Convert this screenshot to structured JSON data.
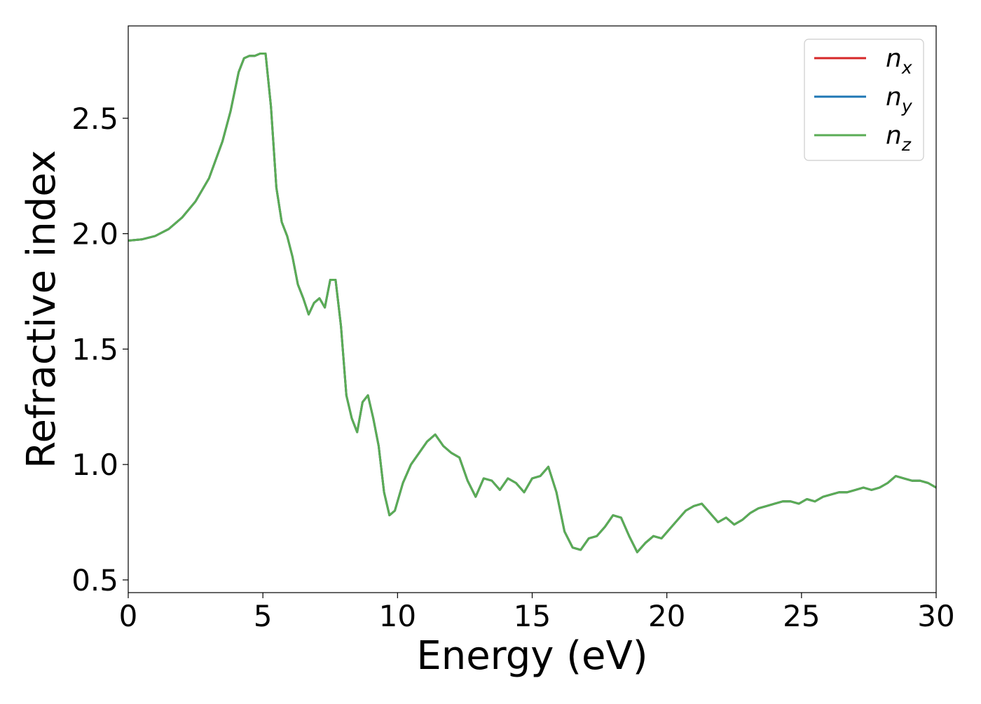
{
  "chart_data": {
    "type": "line",
    "xlabel": "Energy (eV)",
    "ylabel": "Refractive index",
    "xlim": [
      0,
      30
    ],
    "ylim": [
      0.445,
      2.9
    ],
    "xticks": [
      0,
      5,
      10,
      15,
      20,
      25,
      30
    ],
    "xtick_labels": [
      "0",
      "5",
      "10",
      "15",
      "20",
      "25",
      "30"
    ],
    "yticks": [
      0.5,
      1.0,
      1.5,
      2.0,
      2.5
    ],
    "ytick_labels": [
      "0.5",
      "1.0",
      "1.5",
      "2.0",
      "2.5"
    ],
    "grid": false,
    "legend_position": "top-right",
    "series": [
      {
        "name": "n_x",
        "label_main": "n",
        "label_sub": "x",
        "color": "#d62728",
        "x": [
          0,
          0.5,
          1,
          1.5,
          2,
          2.5,
          3,
          3.5,
          3.8,
          4.1,
          4.3,
          4.5,
          4.7,
          4.9,
          5.1,
          5.3,
          5.5,
          5.7,
          5.9,
          6.1,
          6.3,
          6.5,
          6.7,
          6.9,
          7.1,
          7.3,
          7.5,
          7.7,
          7.9,
          8.1,
          8.3,
          8.5,
          8.7,
          8.9,
          9.1,
          9.3,
          9.5,
          9.7,
          9.9,
          10.2,
          10.5,
          10.8,
          11.1,
          11.4,
          11.7,
          12.0,
          12.3,
          12.6,
          12.9,
          13.2,
          13.5,
          13.8,
          14.1,
          14.4,
          14.7,
          15.0,
          15.3,
          15.6,
          15.9,
          16.2,
          16.5,
          16.8,
          17.1,
          17.4,
          17.7,
          18.0,
          18.3,
          18.6,
          18.9,
          19.2,
          19.5,
          19.8,
          20.1,
          20.4,
          20.7,
          21.0,
          21.3,
          21.6,
          21.9,
          22.2,
          22.5,
          22.8,
          23.1,
          23.4,
          23.7,
          24.0,
          24.3,
          24.6,
          24.9,
          25.2,
          25.5,
          25.8,
          26.1,
          26.4,
          26.7,
          27.0,
          27.3,
          27.6,
          27.9,
          28.2,
          28.5,
          28.8,
          29.1,
          29.4,
          29.7,
          30.0
        ],
        "y": [
          1.97,
          1.975,
          1.99,
          2.02,
          2.07,
          2.14,
          2.24,
          2.4,
          2.53,
          2.7,
          2.76,
          2.77,
          2.77,
          2.78,
          2.78,
          2.55,
          2.2,
          2.05,
          1.99,
          1.9,
          1.78,
          1.72,
          1.65,
          1.7,
          1.72,
          1.68,
          1.8,
          1.8,
          1.6,
          1.3,
          1.2,
          1.14,
          1.27,
          1.3,
          1.2,
          1.08,
          0.88,
          0.78,
          0.8,
          0.92,
          1.0,
          1.05,
          1.1,
          1.13,
          1.08,
          1.05,
          1.03,
          0.93,
          0.86,
          0.94,
          0.93,
          0.89,
          0.94,
          0.92,
          0.88,
          0.94,
          0.95,
          0.99,
          0.88,
          0.71,
          0.64,
          0.63,
          0.68,
          0.69,
          0.73,
          0.78,
          0.77,
          0.69,
          0.62,
          0.66,
          0.69,
          0.68,
          0.72,
          0.76,
          0.8,
          0.82,
          0.83,
          0.79,
          0.75,
          0.77,
          0.74,
          0.76,
          0.79,
          0.81,
          0.82,
          0.83,
          0.84,
          0.84,
          0.83,
          0.85,
          0.84,
          0.86,
          0.87,
          0.88,
          0.88,
          0.89,
          0.9,
          0.89,
          0.9,
          0.92,
          0.95,
          0.94,
          0.93,
          0.93,
          0.92,
          0.9
        ]
      },
      {
        "name": "n_y",
        "label_main": "n",
        "label_sub": "y",
        "color": "#1f77b4",
        "x": [
          0,
          0.5,
          1,
          1.5,
          2,
          2.5,
          3,
          3.5,
          3.8,
          4.1,
          4.3,
          4.5,
          4.7,
          4.9,
          5.1,
          5.3,
          5.5,
          5.7,
          5.9,
          6.1,
          6.3,
          6.5,
          6.7,
          6.9,
          7.1,
          7.3,
          7.5,
          7.7,
          7.9,
          8.1,
          8.3,
          8.5,
          8.7,
          8.9,
          9.1,
          9.3,
          9.5,
          9.7,
          9.9,
          10.2,
          10.5,
          10.8,
          11.1,
          11.4,
          11.7,
          12.0,
          12.3,
          12.6,
          12.9,
          13.2,
          13.5,
          13.8,
          14.1,
          14.4,
          14.7,
          15.0,
          15.3,
          15.6,
          15.9,
          16.2,
          16.5,
          16.8,
          17.1,
          17.4,
          17.7,
          18.0,
          18.3,
          18.6,
          18.9,
          19.2,
          19.5,
          19.8,
          20.1,
          20.4,
          20.7,
          21.0,
          21.3,
          21.6,
          21.9,
          22.2,
          22.5,
          22.8,
          23.1,
          23.4,
          23.7,
          24.0,
          24.3,
          24.6,
          24.9,
          25.2,
          25.5,
          25.8,
          26.1,
          26.4,
          26.7,
          27.0,
          27.3,
          27.6,
          27.9,
          28.2,
          28.5,
          28.8,
          29.1,
          29.4,
          29.7,
          30.0
        ],
        "y": [
          1.97,
          1.975,
          1.99,
          2.02,
          2.07,
          2.14,
          2.24,
          2.4,
          2.53,
          2.7,
          2.76,
          2.77,
          2.77,
          2.78,
          2.78,
          2.55,
          2.2,
          2.05,
          1.99,
          1.9,
          1.78,
          1.72,
          1.65,
          1.7,
          1.72,
          1.68,
          1.8,
          1.8,
          1.6,
          1.3,
          1.2,
          1.14,
          1.27,
          1.3,
          1.2,
          1.08,
          0.88,
          0.78,
          0.8,
          0.92,
          1.0,
          1.05,
          1.1,
          1.13,
          1.08,
          1.05,
          1.03,
          0.93,
          0.86,
          0.94,
          0.93,
          0.89,
          0.94,
          0.92,
          0.88,
          0.94,
          0.95,
          0.99,
          0.88,
          0.71,
          0.64,
          0.63,
          0.68,
          0.69,
          0.73,
          0.78,
          0.77,
          0.69,
          0.62,
          0.66,
          0.69,
          0.68,
          0.72,
          0.76,
          0.8,
          0.82,
          0.83,
          0.79,
          0.75,
          0.77,
          0.74,
          0.76,
          0.79,
          0.81,
          0.82,
          0.83,
          0.84,
          0.84,
          0.83,
          0.85,
          0.84,
          0.86,
          0.87,
          0.88,
          0.88,
          0.89,
          0.9,
          0.89,
          0.9,
          0.92,
          0.95,
          0.94,
          0.93,
          0.93,
          0.92,
          0.9
        ]
      },
      {
        "name": "n_z",
        "label_main": "n",
        "label_sub": "z",
        "color": "#5aac55",
        "x": [
          0,
          0.5,
          1,
          1.5,
          2,
          2.5,
          3,
          3.5,
          3.8,
          4.1,
          4.3,
          4.5,
          4.7,
          4.9,
          5.1,
          5.3,
          5.5,
          5.7,
          5.9,
          6.1,
          6.3,
          6.5,
          6.7,
          6.9,
          7.1,
          7.3,
          7.5,
          7.7,
          7.9,
          8.1,
          8.3,
          8.5,
          8.7,
          8.9,
          9.1,
          9.3,
          9.5,
          9.7,
          9.9,
          10.2,
          10.5,
          10.8,
          11.1,
          11.4,
          11.7,
          12.0,
          12.3,
          12.6,
          12.9,
          13.2,
          13.5,
          13.8,
          14.1,
          14.4,
          14.7,
          15.0,
          15.3,
          15.6,
          15.9,
          16.2,
          16.5,
          16.8,
          17.1,
          17.4,
          17.7,
          18.0,
          18.3,
          18.6,
          18.9,
          19.2,
          19.5,
          19.8,
          20.1,
          20.4,
          20.7,
          21.0,
          21.3,
          21.6,
          21.9,
          22.2,
          22.5,
          22.8,
          23.1,
          23.4,
          23.7,
          24.0,
          24.3,
          24.6,
          24.9,
          25.2,
          25.5,
          25.8,
          26.1,
          26.4,
          26.7,
          27.0,
          27.3,
          27.6,
          27.9,
          28.2,
          28.5,
          28.8,
          29.1,
          29.4,
          29.7,
          30.0
        ],
        "y": [
          1.97,
          1.975,
          1.99,
          2.02,
          2.07,
          2.14,
          2.24,
          2.4,
          2.53,
          2.7,
          2.76,
          2.77,
          2.77,
          2.78,
          2.78,
          2.55,
          2.2,
          2.05,
          1.99,
          1.9,
          1.78,
          1.72,
          1.65,
          1.7,
          1.72,
          1.68,
          1.8,
          1.8,
          1.6,
          1.3,
          1.2,
          1.14,
          1.27,
          1.3,
          1.2,
          1.08,
          0.88,
          0.78,
          0.8,
          0.92,
          1.0,
          1.05,
          1.1,
          1.13,
          1.08,
          1.05,
          1.03,
          0.93,
          0.86,
          0.94,
          0.93,
          0.89,
          0.94,
          0.92,
          0.88,
          0.94,
          0.95,
          0.99,
          0.88,
          0.71,
          0.64,
          0.63,
          0.68,
          0.69,
          0.73,
          0.78,
          0.77,
          0.69,
          0.62,
          0.66,
          0.69,
          0.68,
          0.72,
          0.76,
          0.8,
          0.82,
          0.83,
          0.79,
          0.75,
          0.77,
          0.74,
          0.76,
          0.79,
          0.81,
          0.82,
          0.83,
          0.84,
          0.84,
          0.83,
          0.85,
          0.84,
          0.86,
          0.87,
          0.88,
          0.88,
          0.89,
          0.9,
          0.89,
          0.9,
          0.92,
          0.95,
          0.94,
          0.93,
          0.93,
          0.92,
          0.9
        ]
      }
    ]
  }
}
